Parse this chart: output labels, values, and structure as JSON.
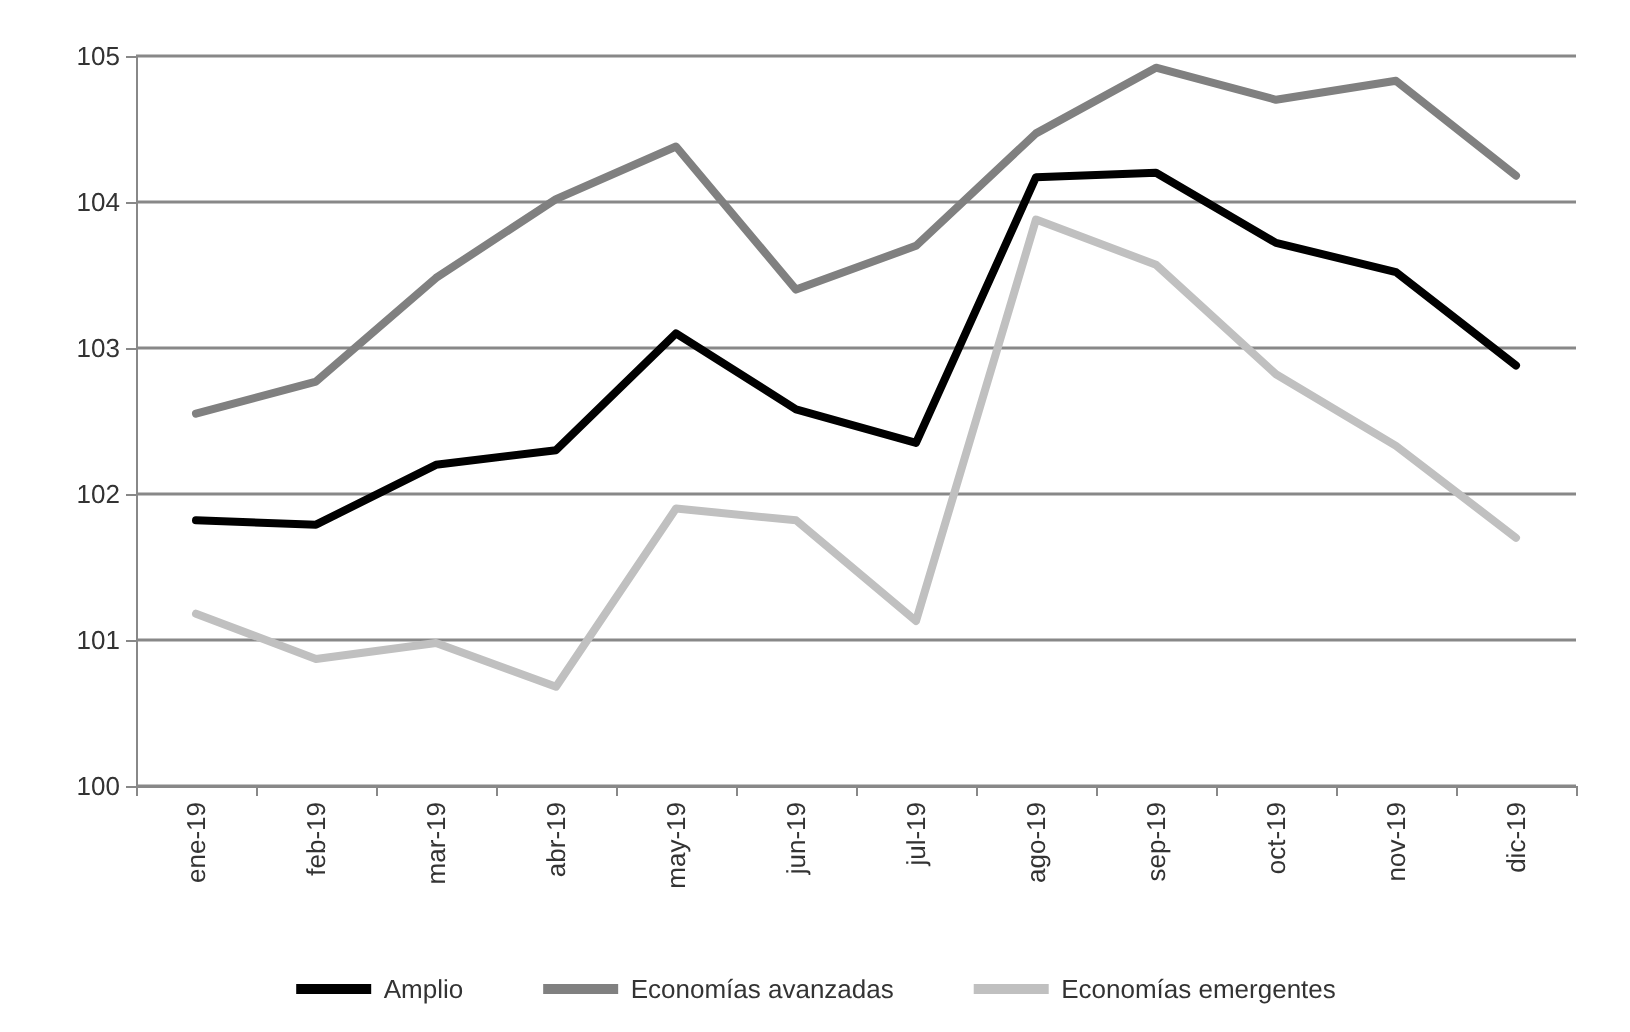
{
  "chart_data": {
    "type": "line",
    "categories": [
      "ene-19",
      "feb-19",
      "mar-19",
      "abr-19",
      "may-19",
      "jun-19",
      "jul-19",
      "ago-19",
      "sep-19",
      "oct-19",
      "nov-19",
      "dic-19"
    ],
    "series": [
      {
        "name": "Amplio",
        "color": "#000000",
        "values": [
          101.82,
          101.79,
          102.2,
          102.3,
          103.1,
          102.58,
          102.35,
          104.17,
          104.2,
          103.72,
          103.52,
          102.88
        ]
      },
      {
        "name": "Economías avanzadas",
        "color": "#808080",
        "values": [
          102.55,
          102.77,
          103.48,
          104.02,
          104.38,
          103.4,
          103.7,
          104.47,
          104.92,
          104.7,
          104.83,
          104.18
        ]
      },
      {
        "name": "Economías emergentes",
        "color": "#c0c0c0",
        "values": [
          101.18,
          100.87,
          100.98,
          100.68,
          101.9,
          101.82,
          101.13,
          103.88,
          103.57,
          102.82,
          102.33,
          101.7
        ]
      }
    ],
    "ylim": [
      100,
      105
    ],
    "yticks": [
      100,
      101,
      102,
      103,
      104,
      105
    ],
    "grid": "y",
    "legend": "bottom",
    "marker": "none",
    "line_style": "solid"
  }
}
